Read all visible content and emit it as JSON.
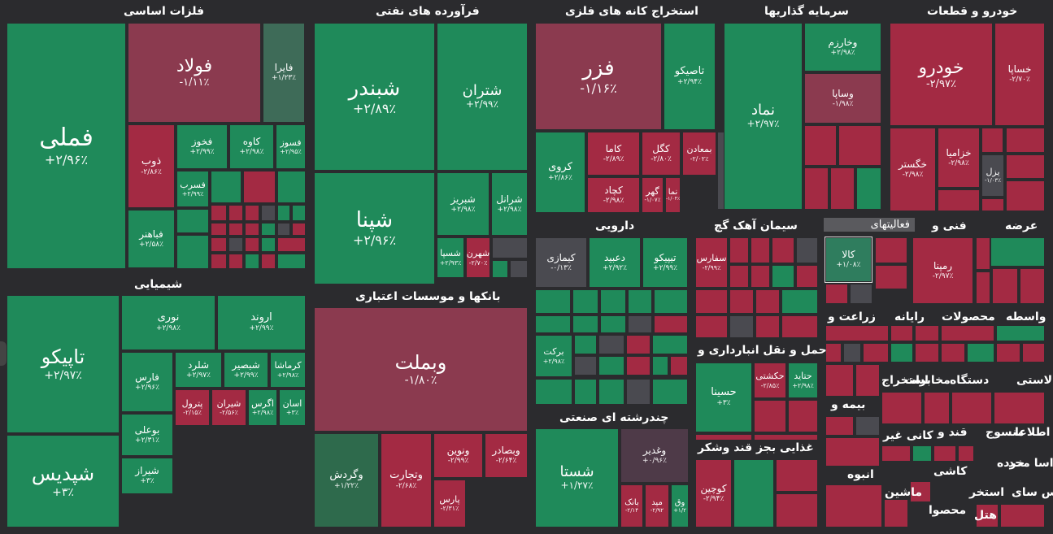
{
  "colors": {
    "up": "#1f8a5a",
    "down": "#a32a43",
    "bg": "#2b2b2e"
  },
  "sectors": [
    {
      "id": "s0",
      "label": "فلزات اساسی"
    },
    {
      "id": "s1",
      "label": "فرآورده های نفتی"
    },
    {
      "id": "s2",
      "label": "استخراج کانه های فلزی"
    },
    {
      "id": "s3",
      "label": "سرمایه گذاریها"
    },
    {
      "id": "s4",
      "label": "خودرو و قطعات"
    },
    {
      "id": "s5",
      "label": "شیمیایی"
    },
    {
      "id": "s6",
      "label": "بانکها و موسسات اعتباری"
    },
    {
      "id": "s7",
      "label": "دارویی"
    },
    {
      "id": "s8",
      "label": "سیمان آهک گچ"
    },
    {
      "id": "s9",
      "label": "فعالیتهای"
    },
    {
      "id": "s10",
      "label": "فنی و"
    },
    {
      "id": "s11",
      "label": "عرضه"
    },
    {
      "id": "s12",
      "label": "زراعت و"
    },
    {
      "id": "s13",
      "label": "رایانه"
    },
    {
      "id": "s14",
      "label": "محصولات"
    },
    {
      "id": "s15",
      "label": "واسطه"
    },
    {
      "id": "s16",
      "label": "حمل و نقل انبارداری و"
    },
    {
      "id": "s17",
      "label": "دستگاه"
    },
    {
      "id": "s18",
      "label": "مخابرات"
    },
    {
      "id": "s19",
      "label": "استخراج"
    },
    {
      "id": "s20",
      "label": "لاستی"
    },
    {
      "id": "s21",
      "label": "چندرشته ای صنعتی"
    },
    {
      "id": "s22",
      "label": "غذایی بجز قند وشکر"
    },
    {
      "id": "s23",
      "label": "بیمه و"
    },
    {
      "id": "s24",
      "label": "کانی غیر"
    },
    {
      "id": "s25",
      "label": "قند و"
    },
    {
      "id": "s26",
      "label": "منسوج"
    },
    {
      "id": "s27",
      "label": "اطلاعا"
    },
    {
      "id": "s28",
      "label": "انبوه"
    },
    {
      "id": "s29",
      "label": "کاشی"
    },
    {
      "id": "s30",
      "label": "خرده"
    },
    {
      "id": "s31",
      "label": "اسا محد"
    },
    {
      "id": "s32",
      "label": "ماشین"
    },
    {
      "id": "s33",
      "label": "وس سای"
    },
    {
      "id": "s34",
      "label": "استخر"
    },
    {
      "id": "s35",
      "label": "محصوا"
    },
    {
      "id": "s36",
      "label": "هتل"
    }
  ],
  "cells": [
    {
      "id": "c0",
      "name": "فملی",
      "pct": "+۲/۹۶٪"
    },
    {
      "id": "c1",
      "name": "فولاد",
      "pct": "-۱/۱۱٪"
    },
    {
      "id": "c2",
      "name": "فایرا",
      "pct": "+۱/۲۳٪"
    },
    {
      "id": "c3",
      "name": "ذوب",
      "pct": "-۲/۸۶٪"
    },
    {
      "id": "c4",
      "name": "فخوز",
      "pct": "+۲/۹۹٪"
    },
    {
      "id": "c5",
      "name": "کاوه",
      "pct": "+۲/۹۸٪"
    },
    {
      "id": "c6",
      "name": "فسوز",
      "pct": "+۲/۹۵٪"
    },
    {
      "id": "c7",
      "name": "فسرب",
      "pct": "+۲/۹۹٪"
    },
    {
      "id": "c8",
      "name": "فباهنر",
      "pct": "+۲/۵۸٪"
    },
    {
      "id": "c9",
      "name": "شبندر",
      "pct": "+۲/۸۹٪"
    },
    {
      "id": "c10",
      "name": "شتران",
      "pct": "+۲/۹۹٪"
    },
    {
      "id": "c11",
      "name": "شپنا",
      "pct": "+۲/۹۶٪"
    },
    {
      "id": "c12",
      "name": "شبریز",
      "pct": "+۲/۹۸٪"
    },
    {
      "id": "c13",
      "name": "شرانل",
      "pct": "+۲/۹۸٪"
    },
    {
      "id": "c14",
      "name": "شسپا",
      "pct": "+۲/۹۳٪"
    },
    {
      "id": "c15",
      "name": "شهرن",
      "pct": "-۲/۷۰٪"
    },
    {
      "id": "c16",
      "name": "فزر",
      "pct": "-۱/۱۶٪"
    },
    {
      "id": "c17",
      "name": "تاصیکو",
      "pct": "+۲/۹۴٪"
    },
    {
      "id": "c18",
      "name": "کروی",
      "pct": "+۲/۸۶٪"
    },
    {
      "id": "c19",
      "name": "کاما",
      "pct": "-۲/۸۹٪"
    },
    {
      "id": "c20",
      "name": "کگل",
      "pct": "-۲/۸۰٪"
    },
    {
      "id": "c21",
      "name": "بمعادن",
      "pct": "-۲/۰۲٪"
    },
    {
      "id": "c22",
      "name": "کچاد",
      "pct": "-۲/۹۸٪"
    },
    {
      "id": "c23",
      "name": "گهر",
      "pct": "-۱/۰۷٪"
    },
    {
      "id": "c24",
      "name": "نما",
      "pct": "-۱/۰۴٪"
    },
    {
      "id": "c25",
      "name": "نماد",
      "pct": "+۲/۹۷٪"
    },
    {
      "id": "c26",
      "name": "وخارزم",
      "pct": "+۲/۹۸٪"
    },
    {
      "id": "c27",
      "name": "وساپا",
      "pct": "-۱/۹۸٪"
    },
    {
      "id": "c28",
      "name": "خودرو",
      "pct": "-۲/۹۷٪"
    },
    {
      "id": "c29",
      "name": "خساپا",
      "pct": "-۲/۷۰٪"
    },
    {
      "id": "c30",
      "name": "خگستر",
      "pct": "-۲/۹۸٪"
    },
    {
      "id": "c31",
      "name": "خزامیا",
      "pct": "-۲/۹۸٪"
    },
    {
      "id": "c32",
      "name": "یزل",
      "pct": "-۱/۰۳٪"
    },
    {
      "id": "c33",
      "name": "تاپیکو",
      "pct": "+۲/۹۷٪"
    },
    {
      "id": "c34",
      "name": "نوری",
      "pct": "+۲/۹۸٪"
    },
    {
      "id": "c35",
      "name": "اروند",
      "pct": "+۲/۹۹٪"
    },
    {
      "id": "c36",
      "name": "فارس",
      "pct": "+۲/۹۶٪"
    },
    {
      "id": "c37",
      "name": "شلرد",
      "pct": "+۲/۹۷٪"
    },
    {
      "id": "c38",
      "name": "شبصیر",
      "pct": "+۲/۹۹٪"
    },
    {
      "id": "c39",
      "name": "کرماشا",
      "pct": "+۲/۹۸٪"
    },
    {
      "id": "c40",
      "name": "بوعلی",
      "pct": "+۲/۳۱٪"
    },
    {
      "id": "c41",
      "name": "پترول",
      "pct": "-۲/۱۵٪"
    },
    {
      "id": "c42",
      "name": "شیران",
      "pct": "-۲/۵۶٪"
    },
    {
      "id": "c43",
      "name": "اگرس",
      "pct": "+۲/۹۸٪"
    },
    {
      "id": "c44",
      "name": "اسان",
      "pct": "+۳٪"
    },
    {
      "id": "c45",
      "name": "شیراز",
      "pct": "+۳٪"
    },
    {
      "id": "c46",
      "name": "شپدیس",
      "pct": "+۳٪"
    },
    {
      "id": "c47",
      "name": "وبملت",
      "pct": "-۱/۸۰٪"
    },
    {
      "id": "c48",
      "name": "وگردش",
      "pct": "+۱/۲۲٪"
    },
    {
      "id": "c49",
      "name": "وتجارت",
      "pct": "-۲/۶۸٪"
    },
    {
      "id": "c50",
      "name": "ونوین",
      "pct": "-۲/۹۹٪"
    },
    {
      "id": "c51",
      "name": "وبصادر",
      "pct": "-۲/۶۴٪"
    },
    {
      "id": "c52",
      "name": "پارس",
      "pct": "-۲/۳۱٪"
    },
    {
      "id": "c53",
      "name": "کیمازی",
      "pct": "-۰/۱۳٪"
    },
    {
      "id": "c54",
      "name": "دعبید",
      "pct": "+۲/۹۲٪"
    },
    {
      "id": "c55",
      "name": "تیپیکو",
      "pct": "+۲/۹۹٪"
    },
    {
      "id": "c56",
      "name": "برکت",
      "pct": "+۲/۹۸٪"
    },
    {
      "id": "c57",
      "name": "شستا",
      "pct": "+۱/۲۷٪"
    },
    {
      "id": "c58",
      "name": "وغدیر",
      "pct": "+۰/۹۶٪"
    },
    {
      "id": "c59",
      "name": "بانک",
      "pct": "-۲/۱۴"
    },
    {
      "id": "c60",
      "name": "مید",
      "pct": "-۲/۹۲"
    },
    {
      "id": "c61",
      "name": "وق",
      "pct": "+۱/۲"
    },
    {
      "id": "c62",
      "name": "سفارس",
      "pct": "-۲/۹۹٪"
    },
    {
      "id": "c63",
      "name": "کالا",
      "pct": "+۱/۰۸٪"
    },
    {
      "id": "c64",
      "name": "رمپنا",
      "pct": "-۲/۹۷٪"
    },
    {
      "id": "c65",
      "name": "حسینا",
      "pct": "+۳٪"
    },
    {
      "id": "c66",
      "name": "حکشتی",
      "pct": "-۲/۸۵٪"
    },
    {
      "id": "c67",
      "name": "حتاید",
      "pct": "+۲/۹۸٪"
    },
    {
      "id": "c68",
      "name": "کوچین",
      "pct": "-۲/۹۴٪"
    }
  ]
}
